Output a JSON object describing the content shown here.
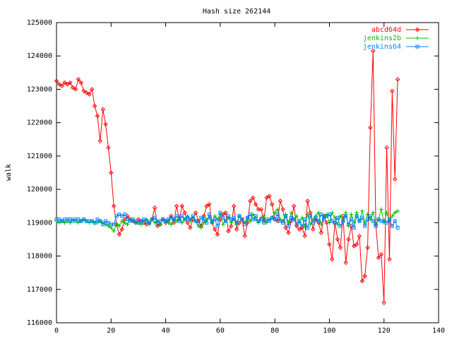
{
  "chart_data": {
    "type": "line",
    "title": "Hash size 262144",
    "y_label": "walk",
    "xlim": [
      0,
      140
    ],
    "xticks": [
      0,
      20,
      40,
      60,
      80,
      100,
      120,
      140
    ],
    "ylim": [
      116000,
      125000
    ],
    "yticks": [
      116000,
      117000,
      118000,
      119000,
      120000,
      121000,
      122000,
      123000,
      124000,
      125000
    ],
    "legend": "top-right",
    "x": [
      0,
      1,
      2,
      3,
      4,
      5,
      6,
      7,
      8,
      9,
      10,
      11,
      12,
      13,
      14,
      15,
      16,
      17,
      18,
      19,
      20,
      21,
      22,
      23,
      24,
      25,
      26,
      27,
      28,
      29,
      30,
      31,
      32,
      33,
      34,
      35,
      36,
      37,
      38,
      39,
      40,
      41,
      42,
      43,
      44,
      45,
      46,
      47,
      48,
      49,
      50,
      51,
      52,
      53,
      54,
      55,
      56,
      57,
      58,
      59,
      60,
      61,
      62,
      63,
      64,
      65,
      66,
      67,
      68,
      69,
      70,
      71,
      72,
      73,
      74,
      75,
      76,
      77,
      78,
      79,
      80,
      81,
      82,
      83,
      84,
      85,
      86,
      87,
      88,
      89,
      90,
      91,
      92,
      93,
      94,
      95,
      96,
      97,
      98,
      99,
      100,
      101,
      102,
      103,
      104,
      105,
      106,
      107,
      108,
      109,
      110,
      111,
      112,
      113,
      114,
      115,
      116,
      117,
      118,
      119,
      120,
      121,
      122,
      123,
      124,
      125
    ],
    "series": [
      {
        "name": "abcd64d",
        "color": "#ff0000",
        "marker": "diamond",
        "values": [
          123250,
          123150,
          123100,
          123200,
          123150,
          123200,
          123050,
          123000,
          123300,
          123200,
          122950,
          122900,
          122850,
          123000,
          122500,
          122200,
          121450,
          122400,
          121950,
          121250,
          120500,
          119500,
          118950,
          118650,
          118800,
          119100,
          119200,
          119100,
          119050,
          119000,
          119100,
          119050,
          119000,
          118950,
          119000,
          119100,
          119450,
          118900,
          118950,
          119100,
          119000,
          119050,
          119200,
          119000,
          119500,
          119100,
          119500,
          119300,
          119000,
          118850,
          119100,
          119300,
          119050,
          118900,
          119200,
          119500,
          119550,
          119000,
          118800,
          118650,
          119100,
          119250,
          119300,
          118750,
          118900,
          119500,
          118800,
          119000,
          119100,
          118600,
          119000,
          119650,
          119750,
          119550,
          119400,
          119400,
          119050,
          119750,
          119800,
          119550,
          119100,
          119050,
          119650,
          119400,
          118850,
          118700,
          119050,
          119500,
          118900,
          118800,
          118850,
          118600,
          119650,
          119300,
          118800,
          119100,
          119000,
          118700,
          119200,
          119000,
          118350,
          117900,
          119000,
          118500,
          118250,
          119200,
          117800,
          118500,
          118900,
          118300,
          118350,
          118600,
          117250,
          117400,
          118250,
          121850,
          124150,
          118950,
          117950,
          118050,
          116600,
          121250,
          117900,
          122950,
          120300,
          123300
        ]
      },
      {
        "name": "jenkins2b",
        "color": "#00c000",
        "marker": "plus",
        "values": [
          119050,
          119000,
          119050,
          119000,
          119050,
          119000,
          119100,
          119050,
          119000,
          119050,
          119100,
          119050,
          119000,
          119050,
          119000,
          119000,
          119050,
          119000,
          118950,
          118900,
          118850,
          118750,
          118950,
          118900,
          119050,
          119000,
          118950,
          119100,
          119050,
          119000,
          119000,
          118950,
          119050,
          119100,
          118950,
          119100,
          119000,
          119050,
          118950,
          119100,
          119050,
          119000,
          118950,
          119100,
          119050,
          119150,
          119000,
          119100,
          119200,
          119050,
          119150,
          119050,
          118900,
          118850,
          119000,
          119100,
          119150,
          119000,
          119200,
          119100,
          119250,
          118950,
          119050,
          119150,
          119000,
          119100,
          118950,
          119200,
          119100,
          119000,
          119150,
          119050,
          119250,
          119100,
          119000,
          119150,
          119200,
          119000,
          119100,
          119150,
          119300,
          119400,
          119100,
          119050,
          119250,
          119000,
          119300,
          119100,
          119200,
          119000,
          119150,
          118900,
          119250,
          118950,
          119100,
          119200,
          119300,
          118950,
          119200,
          119250,
          119000,
          119300,
          119150,
          118950,
          119200,
          119050,
          119300,
          118900,
          119250,
          119000,
          119300,
          119050,
          119350,
          119000,
          119250,
          119100,
          119300,
          118950,
          119100,
          119400,
          119000,
          119300,
          119050,
          119200,
          119300,
          119350
        ]
      },
      {
        "name": "jenkins64",
        "color": "#0080ff",
        "marker": "square",
        "values": [
          119100,
          119100,
          119050,
          119100,
          119100,
          119100,
          119050,
          119100,
          119100,
          119050,
          119100,
          119050,
          119050,
          119050,
          119000,
          119100,
          119050,
          118950,
          119050,
          119000,
          118950,
          118950,
          119200,
          119250,
          119200,
          119250,
          119100,
          119050,
          119100,
          119050,
          119000,
          119050,
          119100,
          119050,
          119000,
          119100,
          119150,
          119000,
          119050,
          119100,
          119050,
          119100,
          119150,
          119100,
          119200,
          119050,
          119200,
          119100,
          119150,
          119100,
          119200,
          119050,
          119000,
          119150,
          119100,
          119000,
          119250,
          119050,
          119100,
          118900,
          119300,
          119150,
          119050,
          119200,
          119100,
          119150,
          119000,
          119200,
          119100,
          118950,
          119150,
          119250,
          119100,
          119200,
          119050,
          119100,
          119000,
          119100,
          119050,
          119150,
          119100,
          119250,
          119050,
          119000,
          119200,
          118900,
          119150,
          119100,
          118950,
          119050,
          118900,
          119100,
          118850,
          119200,
          119000,
          119150,
          119050,
          119250,
          119100,
          119200,
          119250,
          119050,
          119000,
          119150,
          118900,
          119050,
          119200,
          118950,
          119100,
          118850,
          119200,
          119050,
          119150,
          118900,
          119100,
          119200,
          119050,
          118900,
          119100,
          119050,
          119050,
          119000,
          119100,
          118900,
          119050,
          118850
        ]
      }
    ]
  }
}
